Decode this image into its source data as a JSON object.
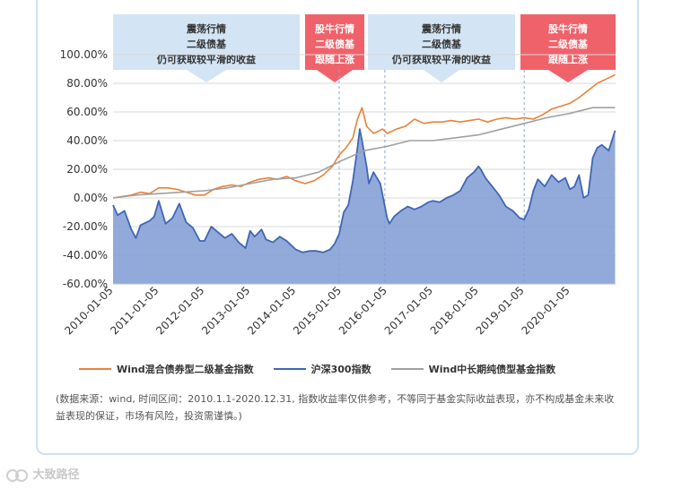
{
  "chart_data": {
    "type": "area",
    "ylim": [
      -60,
      100
    ],
    "y_ticks": [
      "100.00%",
      "80.00%",
      "60.00%",
      "40.00%",
      "20.00%",
      "0.00%",
      "-20.00%",
      "-40.00%",
      "-60.00%"
    ],
    "x_ticks": [
      "2010-01-05",
      "2011-01-05",
      "2012-01-05",
      "2013-01-05",
      "2014-01-05",
      "2015-01-05",
      "2016-01-05",
      "2017-01-05",
      "2018-01-05",
      "2019-01-05",
      "2020-01-05"
    ],
    "series": [
      {
        "name": "Wind混合债券型二级基金指数",
        "color": "#e8823a",
        "x": [
          2010.0,
          2010.2,
          2010.4,
          2010.6,
          2010.8,
          2011.0,
          2011.2,
          2011.4,
          2011.6,
          2011.8,
          2012.0,
          2012.2,
          2012.4,
          2012.6,
          2012.8,
          2013.0,
          2013.2,
          2013.4,
          2013.6,
          2013.8,
          2014.0,
          2014.2,
          2014.4,
          2014.6,
          2014.8,
          2014.95,
          2015.1,
          2015.25,
          2015.35,
          2015.45,
          2015.55,
          2015.7,
          2015.9,
          2016.0,
          2016.2,
          2016.4,
          2016.6,
          2016.8,
          2017.0,
          2017.2,
          2017.4,
          2017.6,
          2017.8,
          2018.0,
          2018.2,
          2018.4,
          2018.6,
          2018.8,
          2019.0,
          2019.2,
          2019.4,
          2019.6,
          2019.8,
          2020.0,
          2020.2,
          2020.4,
          2020.6,
          2020.8,
          2020.99
        ],
        "values": [
          0,
          1,
          2,
          4,
          3,
          7,
          7,
          6,
          4,
          2,
          2,
          6,
          8,
          9,
          8,
          11,
          13,
          14,
          13,
          15,
          12,
          10,
          12,
          16,
          22,
          30,
          35,
          42,
          55,
          63,
          50,
          45,
          48,
          45,
          48,
          50,
          55,
          52,
          53,
          53,
          54,
          53,
          54,
          55,
          53,
          55,
          56,
          55,
          56,
          55,
          58,
          62,
          64,
          66,
          70,
          75,
          80,
          83,
          86
        ]
      },
      {
        "name": "沪深300指数",
        "color": "#3f66b4",
        "x": [
          2010.0,
          2010.1,
          2010.25,
          2010.4,
          2010.5,
          2010.6,
          2010.8,
          2010.9,
          2011.0,
          2011.15,
          2011.3,
          2011.45,
          2011.6,
          2011.75,
          2011.9,
          2012.0,
          2012.15,
          2012.3,
          2012.45,
          2012.6,
          2012.75,
          2012.9,
          2013.0,
          2013.1,
          2013.25,
          2013.35,
          2013.5,
          2013.65,
          2013.8,
          2013.9,
          2014.0,
          2014.15,
          2014.3,
          2014.45,
          2014.6,
          2014.75,
          2014.85,
          2014.95,
          2015.05,
          2015.15,
          2015.25,
          2015.35,
          2015.4,
          2015.45,
          2015.55,
          2015.6,
          2015.7,
          2015.85,
          2016.0,
          2016.05,
          2016.15,
          2016.3,
          2016.45,
          2016.6,
          2016.75,
          2016.9,
          2017.0,
          2017.15,
          2017.3,
          2017.45,
          2017.6,
          2017.75,
          2017.9,
          2018.0,
          2018.05,
          2018.15,
          2018.3,
          2018.45,
          2018.6,
          2018.75,
          2018.9,
          2019.0,
          2019.1,
          2019.2,
          2019.3,
          2019.45,
          2019.6,
          2019.75,
          2019.9,
          2020.0,
          2020.1,
          2020.2,
          2020.3,
          2020.4,
          2020.5,
          2020.6,
          2020.7,
          2020.85,
          2020.99
        ],
        "values": [
          -5,
          -12,
          -9,
          -22,
          -28,
          -19,
          -16,
          -13,
          -2,
          -18,
          -14,
          -4,
          -17,
          -21,
          -30,
          -30,
          -20,
          -24,
          -28,
          -25,
          -31,
          -35,
          -23,
          -27,
          -22,
          -29,
          -31,
          -27,
          -30,
          -33,
          -36,
          -38,
          -37,
          -37,
          -38,
          -36,
          -32,
          -25,
          -10,
          -5,
          12,
          35,
          48,
          40,
          22,
          10,
          18,
          10,
          -14,
          -18,
          -13,
          -9,
          -6,
          -8,
          -6,
          -3,
          -2,
          -3,
          0,
          2,
          5,
          14,
          18,
          22,
          20,
          14,
          8,
          2,
          -6,
          -9,
          -14,
          -15,
          -8,
          5,
          13,
          8,
          16,
          11,
          14,
          6,
          8,
          16,
          0,
          2,
          28,
          35,
          37,
          33,
          47
        ]
      },
      {
        "name": "Wind中长期纯债型基金指数",
        "color": "#a0a0a0",
        "x": [
          2010.0,
          2010.5,
          2011.0,
          2011.5,
          2012.0,
          2012.5,
          2013.0,
          2013.5,
          2014.0,
          2014.5,
          2015.0,
          2015.5,
          2016.0,
          2016.5,
          2017.0,
          2017.5,
          2018.0,
          2018.5,
          2019.0,
          2019.5,
          2020.0,
          2020.5,
          2020.99
        ],
        "values": [
          0,
          2,
          3,
          4,
          5,
          7,
          10,
          13,
          14,
          18,
          26,
          33,
          36,
          40,
          40,
          42,
          44,
          48,
          52,
          56,
          59,
          63,
          63
        ]
      }
    ],
    "annotations": [
      {
        "text": "震荡行情\n二级债基\n仍可获取较平滑的收益",
        "kind": "calm"
      },
      {
        "text": "股牛行情\n二级债基\n跟随上涨",
        "kind": "bull"
      },
      {
        "text": "震荡行情\n二级债基\n仍可获取较平滑的收益",
        "kind": "calm"
      },
      {
        "text": "股牛行情\n二级债基\n跟随上涨",
        "kind": "bull"
      }
    ],
    "legend_placement": "bottom",
    "grid": true
  },
  "legend": [
    {
      "label": "Wind混合债券型二级基金指数",
      "color": "#e8823a"
    },
    {
      "label": "沪深300指数",
      "color": "#3f66b4"
    },
    {
      "label": "Wind中长期纯债型基金指数",
      "color": "#a0a0a0"
    }
  ],
  "note": "(数据来源：wind, 时间区间：2010.1.1-2020.12.31, 指数收益率仅供参考，不等同于基金实际收益表现，亦不构成基金未来收益表现的保证，市场有风险，投资需谨慎。)",
  "watermark": "大致路径",
  "colors": {
    "calm_box": "#d3e4f4",
    "bull_box": "#f0626a",
    "calm_text": "#333333",
    "bull_text": "#ffffff"
  }
}
